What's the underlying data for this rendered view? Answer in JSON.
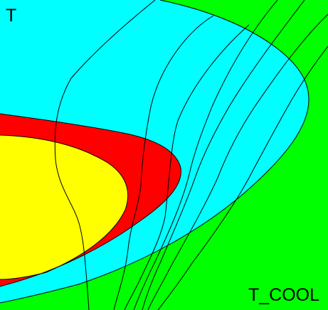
{
  "labels": {
    "top_left": "T",
    "bottom_right": "T_COOL"
  },
  "colors": {
    "background": "#00ff00",
    "outer_region": "#00ffff",
    "middle_band": "#ff0000",
    "inner_core": "#ffff00",
    "contour_lines": "#000000"
  }
}
